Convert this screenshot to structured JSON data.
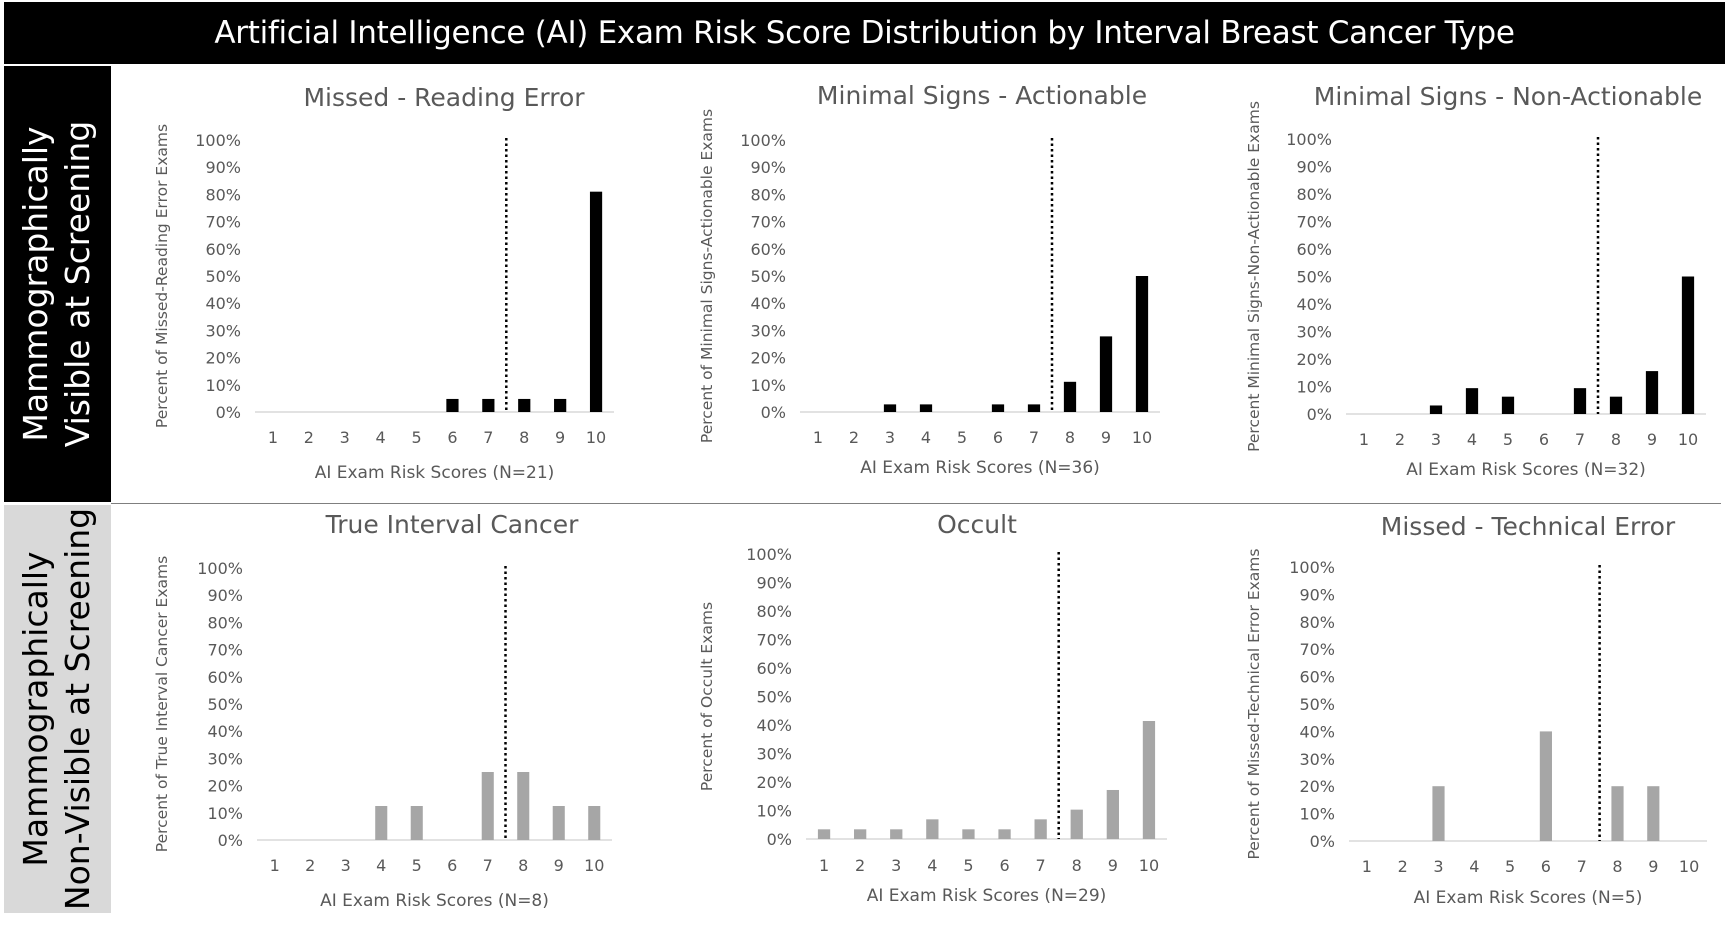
{
  "banner": {
    "title": "Artificial Intelligence (AI) Exam Risk Score Distribution by Interval Breast Cancer Type"
  },
  "row_labels": [
    {
      "line1": "Mammographically",
      "line2": "Visible at Screening"
    },
    {
      "line1": "Mammographically",
      "line2": "Non-Visible at Screening"
    }
  ],
  "colors": {
    "visible_bar": "#000000",
    "nonvisible_bar": "#a6a6a6",
    "banner_bg": "#000000",
    "nonvisible_label_bg": "#d9d9d9"
  },
  "chart_data": [
    {
      "type": "bar",
      "title": "Missed - Reading Error",
      "xlabel": "AI Exam Risk Scores (N=21)",
      "ylabel": "Percent of Missed-Reading Error Exams",
      "categories": [
        "1",
        "2",
        "3",
        "4",
        "5",
        "6",
        "7",
        "8",
        "9",
        "10"
      ],
      "values": [
        0,
        0,
        0,
        0,
        0,
        4.8,
        4.8,
        4.8,
        4.8,
        81.0
      ],
      "yticks": [
        "0%",
        "10%",
        "20%",
        "30%",
        "40%",
        "50%",
        "60%",
        "70%",
        "80%",
        "90%",
        "100%"
      ],
      "ylim": [
        0,
        100
      ],
      "threshold_between": [
        7,
        8
      ],
      "bar_color": "#000000",
      "grid": false
    },
    {
      "type": "bar",
      "title": "Minimal Signs - Actionable",
      "xlabel": "AI Exam Risk Scores (N=36)",
      "ylabel": "Percent of Minimal Signs-Actionable Exams",
      "categories": [
        "1",
        "2",
        "3",
        "4",
        "5",
        "6",
        "7",
        "8",
        "9",
        "10"
      ],
      "values": [
        0,
        0,
        2.8,
        2.8,
        0,
        2.8,
        2.8,
        11.1,
        27.8,
        50.0
      ],
      "yticks": [
        "0%",
        "10%",
        "20%",
        "30%",
        "40%",
        "50%",
        "60%",
        "70%",
        "80%",
        "90%",
        "100%"
      ],
      "ylim": [
        0,
        100
      ],
      "threshold_between": [
        7,
        8
      ],
      "bar_color": "#000000",
      "grid": false
    },
    {
      "type": "bar",
      "title": "Minimal Signs - Non-Actionable",
      "xlabel": "AI Exam Risk Scores (N=32)",
      "ylabel": "Percent Minimal Signs-Non-Actionable Exams",
      "categories": [
        "1",
        "2",
        "3",
        "4",
        "5",
        "6",
        "7",
        "8",
        "9",
        "10"
      ],
      "values": [
        0,
        0,
        3.1,
        9.4,
        6.3,
        0,
        9.4,
        6.3,
        15.6,
        50.0
      ],
      "yticks": [
        "0%",
        "10%",
        "20%",
        "30%",
        "40%",
        "50%",
        "60%",
        "70%",
        "80%",
        "90%",
        "100%"
      ],
      "ylim": [
        0,
        100
      ],
      "threshold_between": [
        7,
        8
      ],
      "bar_color": "#000000",
      "grid": false
    },
    {
      "type": "bar",
      "title": "True Interval Cancer",
      "xlabel": "AI Exam Risk Scores (N=8)",
      "ylabel": "Percent of True Interval Cancer Exams",
      "categories": [
        "1",
        "2",
        "3",
        "4",
        "5",
        "6",
        "7",
        "8",
        "9",
        "10"
      ],
      "values": [
        0,
        0,
        0,
        12.5,
        12.5,
        0,
        25.0,
        25.0,
        12.5,
        12.5
      ],
      "yticks": [
        "0%",
        "10%",
        "20%",
        "30%",
        "40%",
        "50%",
        "60%",
        "70%",
        "80%",
        "90%",
        "100%"
      ],
      "ylim": [
        0,
        100
      ],
      "threshold_between": [
        7,
        8
      ],
      "bar_color": "#a6a6a6",
      "grid": false
    },
    {
      "type": "bar",
      "title": "Occult",
      "xlabel": "AI Exam Risk Scores (N=29)",
      "ylabel": "Percent of Occult Exams",
      "categories": [
        "1",
        "2",
        "3",
        "4",
        "5",
        "6",
        "7",
        "8",
        "9",
        "10"
      ],
      "values": [
        3.4,
        3.4,
        3.4,
        6.9,
        3.4,
        3.4,
        6.9,
        10.3,
        17.2,
        41.4
      ],
      "yticks": [
        "0%",
        "10%",
        "20%",
        "30%",
        "40%",
        "50%",
        "60%",
        "70%",
        "80%",
        "90%",
        "100%"
      ],
      "ylim": [
        0,
        100
      ],
      "threshold_between": [
        7,
        8
      ],
      "bar_color": "#a6a6a6",
      "grid": false
    },
    {
      "type": "bar",
      "title": "Missed - Technical Error",
      "xlabel": "AI Exam Risk Scores (N=5)",
      "ylabel": "Percent of Missed-Technical Error Exams",
      "categories": [
        "1",
        "2",
        "3",
        "4",
        "5",
        "6",
        "7",
        "8",
        "9",
        "10"
      ],
      "values": [
        0,
        0,
        20,
        0,
        0,
        40,
        0,
        20,
        20,
        0
      ],
      "yticks": [
        "0%",
        "10%",
        "20%",
        "30%",
        "40%",
        "50%",
        "60%",
        "70%",
        "80%",
        "90%",
        "100%"
      ],
      "ylim": [
        0,
        100
      ],
      "threshold_between": [
        7,
        8
      ],
      "bar_color": "#a6a6a6",
      "grid": false
    }
  ]
}
